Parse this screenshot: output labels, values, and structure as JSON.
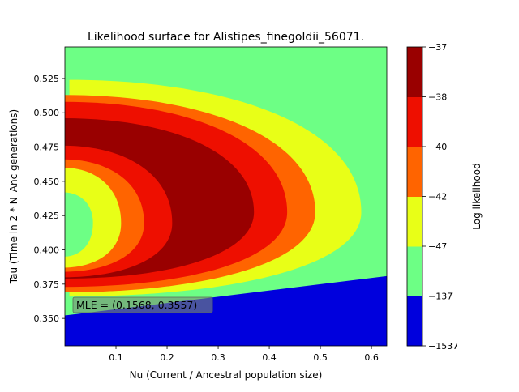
{
  "chart_data": {
    "type": "heatmap",
    "title": "Likelihood surface for Alistipes_finegoldii_56071.",
    "xlabel": "Nu (Current / Ancestral population size)",
    "ylabel": "Tau (Time in 2 * N_Anc generations)",
    "xlim": [
      0.0,
      0.63
    ],
    "ylim": [
      0.33,
      0.548
    ],
    "x_ticks": [
      {
        "value": 0.1,
        "label": "0.1"
      },
      {
        "value": 0.2,
        "label": "0.2"
      },
      {
        "value": 0.3,
        "label": "0.3"
      },
      {
        "value": 0.4,
        "label": "0.4"
      },
      {
        "value": 0.5,
        "label": "0.5"
      },
      {
        "value": 0.6,
        "label": "0.6"
      }
    ],
    "y_ticks": [
      {
        "value": 0.35,
        "label": "0.350"
      },
      {
        "value": 0.375,
        "label": "0.375"
      },
      {
        "value": 0.4,
        "label": "0.400"
      },
      {
        "value": 0.425,
        "label": "0.425"
      },
      {
        "value": 0.45,
        "label": "0.450"
      },
      {
        "value": 0.475,
        "label": "0.475"
      },
      {
        "value": 0.5,
        "label": "0.500"
      },
      {
        "value": 0.525,
        "label": "0.525"
      }
    ],
    "contour_levels": [
      -1537,
      -137,
      -47,
      -42,
      -40,
      -38,
      -37
    ],
    "colorbar": {
      "label": "Log likelihood",
      "tick_labels": [
        "−1537",
        "−137",
        "−47",
        "−42",
        "−40",
        "−38",
        "−37"
      ],
      "colors": [
        "#0000dd",
        "#6dff85",
        "#e8ff17",
        "#ff6400",
        "#ee0f00",
        "#990000"
      ]
    },
    "region_colors": {
      "low": "#0000dd",
      "background": "#6dff85",
      "level_47": "#e8ff17",
      "level_42": "#ff6400",
      "level_40": "#ee0f00",
      "level_38": "#990000"
    },
    "contours": {
      "center_tau": 0.4275,
      "rings": [
        {
          "name": "level_47",
          "color": "#e8ff17",
          "x_max": 0.58,
          "x_min": 0.012,
          "tau_top": 0.524,
          "tau_bottom": 0.366
        },
        {
          "name": "level_42",
          "color": "#ff6400",
          "x_max": 0.49,
          "x_min": 0.0,
          "tau_top": 0.513,
          "tau_bottom": 0.369
        },
        {
          "name": "level_40",
          "color": "#ee0f00",
          "x_max": 0.435,
          "x_min": 0.0,
          "tau_top": 0.508,
          "tau_bottom": 0.373
        },
        {
          "name": "level_38",
          "color": "#990000",
          "x_max": 0.37,
          "x_min": 0.0,
          "tau_top": 0.496,
          "tau_bottom": 0.379
        }
      ],
      "inner_cutouts": [
        {
          "name": "inner_red",
          "color": "#ee0f00",
          "x_max": 0.21,
          "tau_top": 0.476,
          "tau_bottom": 0.38
        },
        {
          "name": "inner_orange",
          "color": "#ff6400",
          "x_max": 0.155,
          "tau_top": 0.466,
          "tau_bottom": 0.384
        },
        {
          "name": "inner_yellow",
          "color": "#e8ff17",
          "x_max": 0.11,
          "tau_top": 0.46,
          "tau_bottom": 0.387
        },
        {
          "name": "inner_green",
          "color": "#6dff85",
          "x_max": 0.055,
          "tau_top": 0.442,
          "tau_bottom": 0.395
        }
      ],
      "low_boundary": [
        {
          "x": 0.0,
          "tau": 0.352
        },
        {
          "x": 0.63,
          "tau": 0.381
        }
      ]
    },
    "mle": {
      "label": "MLE = (0.1568, 0.3557)",
      "nu": 0.1568,
      "tau": 0.3557
    }
  }
}
